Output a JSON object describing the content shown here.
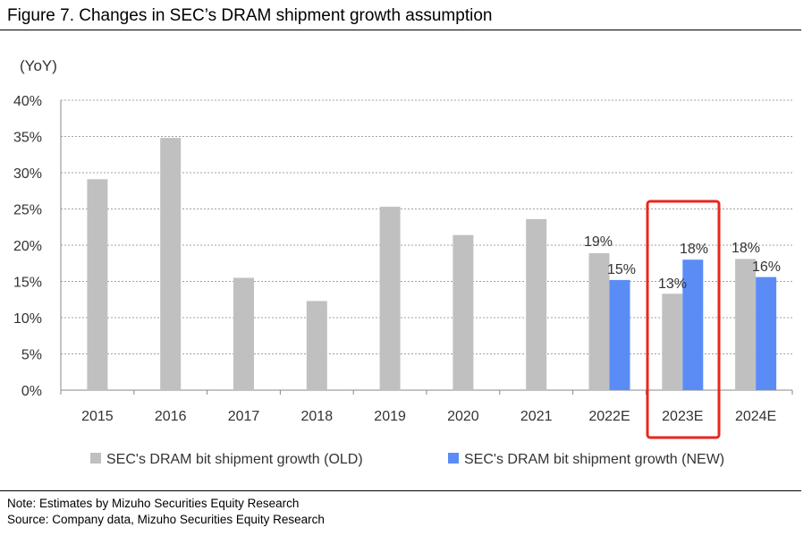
{
  "figure_title": "Figure 7. Changes in SEC’s DRAM shipment growth assumption",
  "notes": {
    "note": "Note: Estimates by Mizuho Securities Equity Research",
    "source": "Source: Company data, Mizuho Securities Equity Research"
  },
  "colors": {
    "old": "#c0c0c0",
    "new": "#5b8cf6",
    "highlight": "#e8261e",
    "grid": "#a0a0a0"
  },
  "chart_data": {
    "type": "bar",
    "title": "",
    "ylabel": "(YoY)",
    "ylim": [
      0,
      40
    ],
    "yticks": [
      0,
      5,
      10,
      15,
      20,
      25,
      30,
      35,
      40
    ],
    "ytick_labels": [
      "0%",
      "5%",
      "10%",
      "15%",
      "20%",
      "25%",
      "30%",
      "35%",
      "40%"
    ],
    "grid": true,
    "categories": [
      "2015",
      "2016",
      "2017",
      "2018",
      "2019",
      "2020",
      "2021",
      "2022E",
      "2023E",
      "2024E"
    ],
    "series": [
      {
        "name": "SEC's DRAM bit shipment growth (OLD)",
        "color_key": "old",
        "values": [
          29.1,
          34.8,
          15.5,
          12.3,
          25.3,
          21.4,
          23.6,
          18.9,
          13.3,
          18.1
        ],
        "data_labels": [
          null,
          null,
          null,
          null,
          null,
          null,
          null,
          "19%",
          "13%",
          "18%"
        ]
      },
      {
        "name": "SEC's DRAM bit shipment growth (NEW)",
        "color_key": "new",
        "values": [
          null,
          null,
          null,
          null,
          null,
          null,
          null,
          15.2,
          18.0,
          15.6
        ],
        "data_labels": [
          null,
          null,
          null,
          null,
          null,
          null,
          null,
          "15%",
          "18%",
          "16%"
        ]
      }
    ],
    "highlighted_category": "2023E",
    "legend_position": "bottom"
  }
}
